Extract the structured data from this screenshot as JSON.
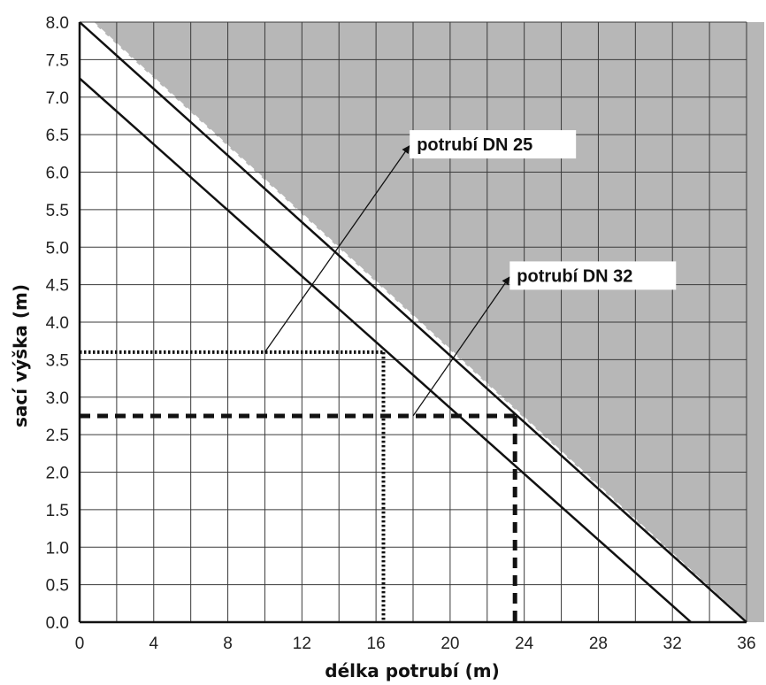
{
  "chart_data": {
    "type": "line",
    "xlabel": "délka potrubí (m)",
    "ylabel": "sací výška (m)",
    "xlim": [
      0,
      36
    ],
    "ylim": [
      0,
      8
    ],
    "x_ticks": [
      "0",
      "4",
      "8",
      "12",
      "16",
      "20",
      "24",
      "28",
      "32",
      "36"
    ],
    "y_ticks": [
      "0.0",
      "0.5",
      "1.0",
      "1.5",
      "2.0",
      "2.5",
      "3.0",
      "3.5",
      "4.0",
      "4.5",
      "5.0",
      "5.5",
      "6.0",
      "6.5",
      "7.0",
      "7.5",
      "8.0"
    ],
    "grid": true,
    "series": [
      {
        "name": "potrubí DN 25",
        "x": [
          0,
          33
        ],
        "y": [
          7.25,
          0
        ]
      },
      {
        "name": "potrubí DN 32",
        "x": [
          0,
          36
        ],
        "y": [
          8.0,
          0
        ]
      }
    ],
    "shaded_region": {
      "x": [
        0.7,
        36
      ],
      "y": [
        8.0,
        0
      ],
      "color": "#b7b7b7"
    },
    "reference_lines": [
      {
        "style": "dotted",
        "x": 16.4,
        "y": 3.6
      },
      {
        "style": "dashed",
        "x": 23.5,
        "y": 2.75
      }
    ],
    "annotations": [
      {
        "text": "potrubí DN 25",
        "arrow_from": [
          10,
          3.6
        ],
        "arrow_to": [
          17.8,
          6.35
        ],
        "text_at": [
          18.2,
          6.3
        ]
      },
      {
        "text": "potrubí DN 32",
        "arrow_from": [
          18,
          2.75
        ],
        "arrow_to": [
          23.2,
          4.6
        ],
        "text_at": [
          23.6,
          4.55
        ]
      }
    ]
  }
}
